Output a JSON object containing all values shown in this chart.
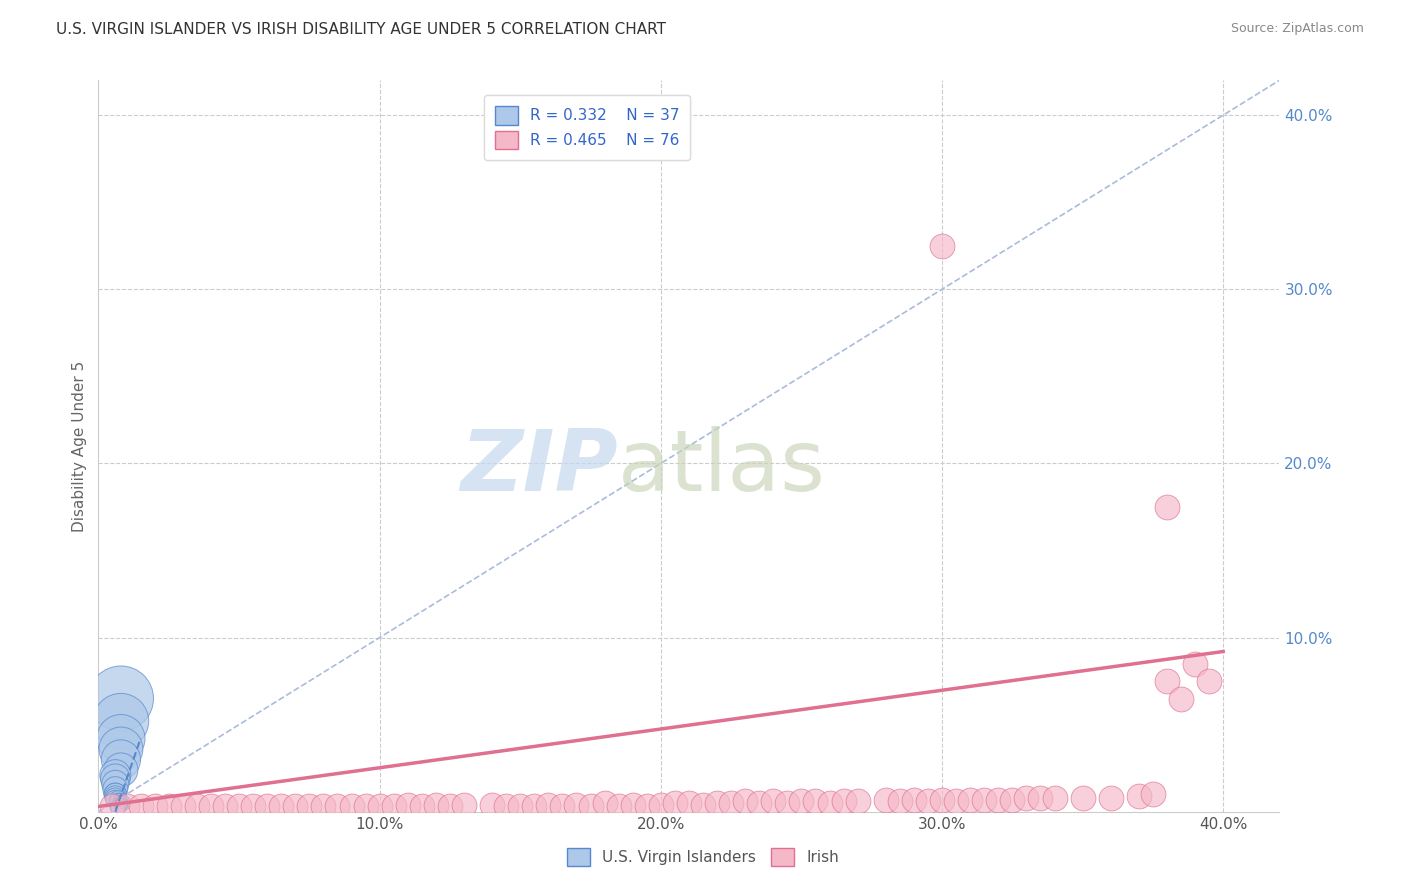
{
  "title": "U.S. VIRGIN ISLANDER VS IRISH DISABILITY AGE UNDER 5 CORRELATION CHART",
  "source": "Source: ZipAtlas.com",
  "ylabel": "Disability Age Under 5",
  "xlim": [
    0.0,
    0.42
  ],
  "ylim": [
    0.0,
    0.42
  ],
  "xticks": [
    0.0,
    0.1,
    0.2,
    0.3,
    0.4
  ],
  "yticks": [
    0.1,
    0.2,
    0.3,
    0.4
  ],
  "xtick_labels": [
    "0.0%",
    "10.0%",
    "20.0%",
    "30.0%",
    "40.0%"
  ],
  "ytick_labels_right": [
    "10.0%",
    "20.0%",
    "30.0%",
    "40.0%"
  ],
  "blue_R": 0.332,
  "blue_N": 37,
  "pink_R": 0.465,
  "pink_N": 76,
  "blue_color": "#adc8e8",
  "pink_color": "#f5b8c8",
  "blue_edge": "#5588cc",
  "pink_edge": "#e07090",
  "trend_blue_color": "#5588cc",
  "trend_pink_color": "#e07090",
  "watermark_zip": "ZIP",
  "watermark_atlas": "atlas",
  "watermark_color_zip": "#c5d8ef",
  "watermark_color_atlas": "#c8d8c8",
  "legend_text_color": "#3366cc",
  "tick_label_color_y": "#5588cc",
  "tick_label_color_x": "#555555",
  "grid_color": "#cccccc",
  "diag_color": "#aabbdd",
  "blue_scatter_x": [
    0.008,
    0.008,
    0.008,
    0.008,
    0.008,
    0.008,
    0.006,
    0.006,
    0.006,
    0.006,
    0.006,
    0.006,
    0.006,
    0.006,
    0.006,
    0.007,
    0.007,
    0.008,
    0.008,
    0.008,
    0.009,
    0.008,
    0.008,
    0.008,
    0.008,
    0.008,
    0.007,
    0.007,
    0.006,
    0.006,
    0.006,
    0.006,
    0.006,
    0.008,
    0.008,
    0.008,
    0.008
  ],
  "blue_scatter_y": [
    0.065,
    0.052,
    0.042,
    0.036,
    0.03,
    0.024,
    0.021,
    0.019,
    0.016,
    0.013,
    0.01,
    0.01,
    0.009,
    0.008,
    0.007,
    0.007,
    0.006,
    0.006,
    0.005,
    0.005,
    0.005,
    0.005,
    0.004,
    0.004,
    0.004,
    0.003,
    0.003,
    0.003,
    0.003,
    0.002,
    0.002,
    0.002,
    0.002,
    0.002,
    0.001,
    0.001,
    0.0
  ],
  "blue_scatter_size": [
    2200,
    1600,
    1200,
    1000,
    800,
    600,
    500,
    450,
    380,
    320,
    260,
    260,
    220,
    200,
    180,
    160,
    140,
    130,
    110,
    110,
    110,
    100,
    90,
    90,
    80,
    75,
    70,
    65,
    60,
    50,
    50,
    45,
    45,
    40,
    35,
    35,
    30
  ],
  "pink_scatter_x": [
    0.005,
    0.01,
    0.015,
    0.02,
    0.025,
    0.03,
    0.035,
    0.04,
    0.045,
    0.05,
    0.055,
    0.06,
    0.065,
    0.07,
    0.075,
    0.08,
    0.085,
    0.09,
    0.095,
    0.1,
    0.105,
    0.11,
    0.115,
    0.12,
    0.125,
    0.13,
    0.14,
    0.145,
    0.15,
    0.155,
    0.16,
    0.165,
    0.17,
    0.175,
    0.18,
    0.185,
    0.19,
    0.195,
    0.2,
    0.205,
    0.21,
    0.215,
    0.22,
    0.225,
    0.23,
    0.235,
    0.24,
    0.245,
    0.25,
    0.255,
    0.26,
    0.265,
    0.27,
    0.28,
    0.285,
    0.29,
    0.295,
    0.3,
    0.305,
    0.31,
    0.315,
    0.32,
    0.325,
    0.33,
    0.335,
    0.34,
    0.35,
    0.36,
    0.37,
    0.375,
    0.38,
    0.385,
    0.39,
    0.395,
    0.3,
    0.38
  ],
  "pink_scatter_y": [
    0.003,
    0.003,
    0.003,
    0.003,
    0.003,
    0.003,
    0.003,
    0.003,
    0.003,
    0.003,
    0.003,
    0.003,
    0.003,
    0.003,
    0.003,
    0.003,
    0.003,
    0.003,
    0.003,
    0.003,
    0.003,
    0.004,
    0.003,
    0.004,
    0.003,
    0.004,
    0.004,
    0.003,
    0.003,
    0.003,
    0.004,
    0.003,
    0.004,
    0.003,
    0.005,
    0.003,
    0.004,
    0.003,
    0.004,
    0.005,
    0.005,
    0.004,
    0.005,
    0.005,
    0.006,
    0.005,
    0.006,
    0.005,
    0.006,
    0.006,
    0.005,
    0.006,
    0.006,
    0.007,
    0.006,
    0.007,
    0.006,
    0.007,
    0.006,
    0.007,
    0.007,
    0.007,
    0.007,
    0.008,
    0.008,
    0.008,
    0.008,
    0.008,
    0.009,
    0.01,
    0.075,
    0.065,
    0.085,
    0.075,
    0.325,
    0.175
  ],
  "pink_trend_x0": 0.0,
  "pink_trend_x1": 0.4,
  "pink_trend_y0": 0.003,
  "pink_trend_y1": 0.092,
  "blue_trend_x0": 0.006,
  "blue_trend_x1": 0.015,
  "blue_trend_y0": 0.0,
  "blue_trend_y1": 0.042
}
